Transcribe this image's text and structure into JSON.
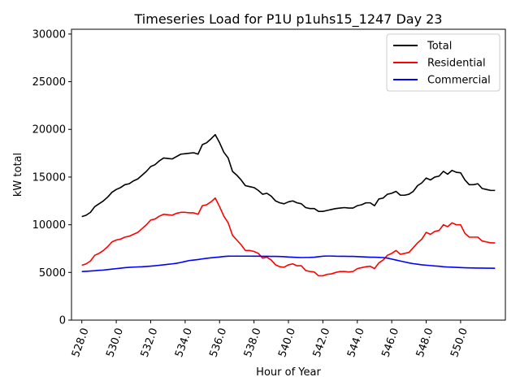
{
  "chart_data": {
    "type": "line",
    "title": "Timeseries Load for P1U p1uhs15_1247  Day 23",
    "xlabel": "Hour of Year",
    "ylabel": "kW total",
    "xlim": [
      527.4,
      552.6
    ],
    "ylim": [
      0,
      30500
    ],
    "x_ticks": [
      528,
      530,
      532,
      534,
      536,
      538,
      540,
      542,
      544,
      546,
      548,
      550
    ],
    "x_tick_labels": [
      "528.0",
      "530.0",
      "532.0",
      "534.0",
      "536.0",
      "538.0",
      "540.0",
      "542.0",
      "544.0",
      "546.0",
      "548.0",
      "550.0"
    ],
    "y_ticks": [
      0,
      5000,
      10000,
      15000,
      20000,
      25000,
      30000
    ],
    "y_tick_labels": [
      "0",
      "5000",
      "10000",
      "15000",
      "20000",
      "25000",
      "30000"
    ],
    "grid": false,
    "legend_position": "top-right",
    "x_start": 528.0,
    "x_step": 0.25,
    "series": [
      {
        "name": "Total",
        "color": "#000000",
        "values": [
          10850,
          11000,
          11300,
          11900,
          12200,
          12500,
          12900,
          13400,
          13700,
          13900,
          14200,
          14300,
          14600,
          14800,
          15200,
          15600,
          16100,
          16300,
          16700,
          17000,
          16950,
          16900,
          17150,
          17400,
          17450,
          17500,
          17550,
          17400,
          18400,
          18600,
          19000,
          19450,
          18600,
          17600,
          17000,
          15600,
          15200,
          14700,
          14100,
          14000,
          13900,
          13600,
          13200,
          13300,
          13000,
          12500,
          12300,
          12200,
          12400,
          12500,
          12300,
          12200,
          11800,
          11700,
          11700,
          11400,
          11400,
          11500,
          11600,
          11700,
          11750,
          11800,
          11750,
          11750,
          12000,
          12100,
          12300,
          12300,
          12000,
          12700,
          12800,
          13200,
          13300,
          13500,
          13100,
          13100,
          13200,
          13500,
          14100,
          14400,
          14900,
          14700,
          15000,
          15100,
          15600,
          15300,
          15700,
          15500,
          15450,
          14700,
          14200,
          14200,
          14300,
          13800,
          13700,
          13600,
          13600
        ]
      },
      {
        "name": "Residential",
        "color": "#ff0000",
        "values": [
          5750,
          5900,
          6200,
          6800,
          7000,
          7300,
          7700,
          8200,
          8400,
          8500,
          8700,
          8800,
          9000,
          9200,
          9600,
          10000,
          10500,
          10600,
          10900,
          11100,
          11050,
          11000,
          11200,
          11300,
          11300,
          11250,
          11250,
          11100,
          12000,
          12100,
          12400,
          12800,
          11900,
          10900,
          10200,
          8900,
          8400,
          7900,
          7300,
          7300,
          7200,
          7000,
          6500,
          6600,
          6300,
          5800,
          5600,
          5550,
          5800,
          5900,
          5700,
          5700,
          5200,
          5100,
          5050,
          4650,
          4650,
          4800,
          4850,
          5000,
          5100,
          5100,
          5050,
          5100,
          5400,
          5500,
          5600,
          5650,
          5400,
          6000,
          6300,
          6800,
          7000,
          7300,
          6900,
          7000,
          7100,
          7600,
          8100,
          8500,
          9200,
          9000,
          9300,
          9400,
          10000,
          9800,
          10200,
          10000,
          10000,
          9100,
          8700,
          8700,
          8700,
          8300,
          8200,
          8100,
          8100
        ]
      },
      {
        "name": "Commercial",
        "color": "#0000ff",
        "values": [
          5100,
          5120,
          5150,
          5180,
          5220,
          5250,
          5300,
          5350,
          5400,
          5450,
          5500,
          5530,
          5560,
          5580,
          5600,
          5630,
          5660,
          5700,
          5750,
          5800,
          5850,
          5900,
          5960,
          6050,
          6150,
          6250,
          6300,
          6350,
          6420,
          6480,
          6530,
          6580,
          6620,
          6670,
          6700,
          6710,
          6710,
          6710,
          6710,
          6710,
          6700,
          6700,
          6690,
          6690,
          6680,
          6680,
          6670,
          6650,
          6620,
          6600,
          6580,
          6560,
          6570,
          6580,
          6600,
          6650,
          6700,
          6720,
          6720,
          6700,
          6690,
          6690,
          6680,
          6680,
          6660,
          6640,
          6620,
          6600,
          6600,
          6580,
          6560,
          6500,
          6400,
          6300,
          6200,
          6100,
          6000,
          5920,
          5860,
          5800,
          5760,
          5720,
          5680,
          5650,
          5600,
          5570,
          5550,
          5530,
          5510,
          5490,
          5480,
          5470,
          5460,
          5460,
          5450,
          5450,
          5440
        ]
      }
    ]
  }
}
